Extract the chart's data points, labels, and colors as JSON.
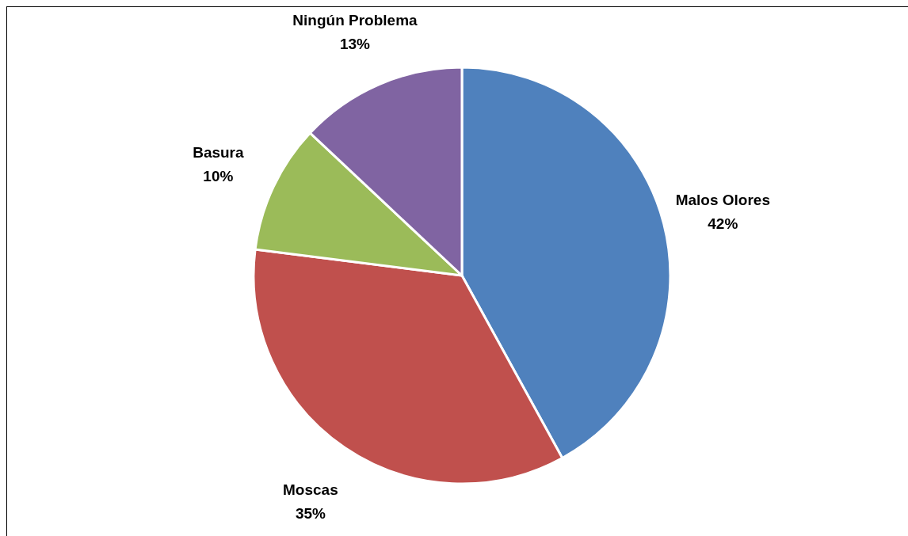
{
  "chart_data": {
    "type": "pie",
    "categories": [
      "Malos Olores",
      "Moscas",
      "Basura",
      "Ningún Problema"
    ],
    "values": [
      42,
      35,
      10,
      13
    ],
    "value_labels": [
      "42%",
      "35%",
      "10%",
      "13%"
    ],
    "colors": [
      "#4f81bd",
      "#c0504d",
      "#9bbb59",
      "#8064a2"
    ],
    "legend": false
  }
}
